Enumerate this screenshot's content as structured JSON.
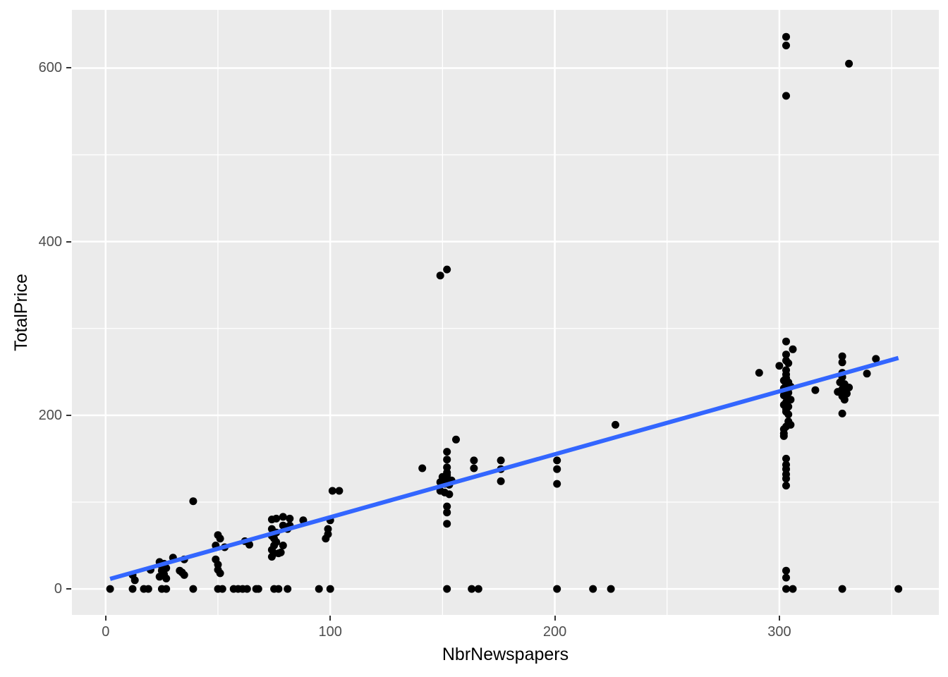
{
  "figure": {
    "background": "#FFFFFF",
    "panel_background": "#EBEBEB",
    "grid_color": "#FFFFFF",
    "point_color": "#000000",
    "trend_color": "#3366FF",
    "tick_label_color": "#4D4D4D",
    "tick_mark_color": "#333333",
    "axis_title_color": "#000000"
  },
  "chart_data": {
    "type": "scatter",
    "title": "",
    "xlabel": "NbrNewspapers",
    "ylabel": "TotalPrice",
    "x_ticks": [
      0,
      100,
      200,
      300
    ],
    "y_ticks": [
      0,
      200,
      400,
      600
    ],
    "x_minor_ticks": [
      50,
      150,
      250,
      350
    ],
    "y_minor_ticks": [
      100,
      300,
      500
    ],
    "xlim": [
      -15,
      371
    ],
    "ylim": [
      -30,
      667
    ],
    "grid": "on",
    "legend": "none",
    "trend": {
      "type": "linear-smooth",
      "x_start": 2,
      "y_start": 11.5,
      "x_end": 353,
      "y_end": 266
    },
    "points": [
      [
        303,
        636
      ],
      [
        303,
        626
      ],
      [
        303,
        568
      ],
      [
        331,
        605
      ],
      [
        152,
        368
      ],
      [
        149,
        361
      ],
      [
        227,
        189
      ],
      [
        291,
        249
      ],
      [
        303,
        285
      ],
      [
        306,
        276
      ],
      [
        303,
        270
      ],
      [
        303,
        263
      ],
      [
        304,
        260
      ],
      [
        300,
        257
      ],
      [
        303,
        252
      ],
      [
        303,
        247
      ],
      [
        303,
        243
      ],
      [
        302,
        240
      ],
      [
        304,
        238
      ],
      [
        303,
        236
      ],
      [
        305,
        233
      ],
      [
        302,
        231
      ],
      [
        303,
        229
      ],
      [
        304,
        226
      ],
      [
        302,
        223
      ],
      [
        303,
        221
      ],
      [
        305,
        218
      ],
      [
        303,
        215
      ],
      [
        302,
        212
      ],
      [
        304,
        210
      ],
      [
        303,
        207
      ],
      [
        303,
        204
      ],
      [
        304,
        201
      ],
      [
        304,
        193
      ],
      [
        305,
        189
      ],
      [
        303,
        187
      ],
      [
        302,
        184
      ],
      [
        302,
        179
      ],
      [
        302,
        176
      ],
      [
        303,
        150
      ],
      [
        303,
        143
      ],
      [
        303,
        138
      ],
      [
        303,
        132
      ],
      [
        303,
        127
      ],
      [
        303,
        119
      ],
      [
        303,
        21
      ],
      [
        303,
        13
      ],
      [
        303,
        0
      ],
      [
        306,
        0
      ],
      [
        316,
        229
      ],
      [
        328,
        268
      ],
      [
        328,
        261
      ],
      [
        328,
        249
      ],
      [
        328,
        244
      ],
      [
        327,
        238
      ],
      [
        329,
        236
      ],
      [
        331,
        232
      ],
      [
        328,
        230
      ],
      [
        326,
        227
      ],
      [
        330,
        225
      ],
      [
        328,
        222
      ],
      [
        329,
        218
      ],
      [
        328,
        202
      ],
      [
        339,
        248
      ],
      [
        343,
        265
      ],
      [
        328,
        0
      ],
      [
        353,
        0
      ],
      [
        201,
        148
      ],
      [
        201,
        138
      ],
      [
        201,
        121
      ],
      [
        201,
        0
      ],
      [
        217,
        0
      ],
      [
        225,
        0
      ],
      [
        176,
        148
      ],
      [
        176,
        138
      ],
      [
        176,
        124
      ],
      [
        164,
        148
      ],
      [
        164,
        139
      ],
      [
        163,
        0
      ],
      [
        166,
        0
      ],
      [
        156,
        172
      ],
      [
        152,
        158
      ],
      [
        152,
        149
      ],
      [
        152,
        140
      ],
      [
        141,
        139
      ],
      [
        152,
        134
      ],
      [
        150,
        129
      ],
      [
        152,
        127
      ],
      [
        154,
        125
      ],
      [
        149,
        123
      ],
      [
        151,
        121
      ],
      [
        153,
        120
      ],
      [
        152,
        131
      ],
      [
        149,
        113
      ],
      [
        153,
        109
      ],
      [
        151,
        111
      ],
      [
        152,
        95
      ],
      [
        152,
        88
      ],
      [
        152,
        75
      ],
      [
        152,
        0
      ],
      [
        101,
        113
      ],
      [
        104,
        113
      ],
      [
        100,
        79
      ],
      [
        99,
        69
      ],
      [
        99,
        63
      ],
      [
        98,
        58
      ],
      [
        95,
        0
      ],
      [
        100,
        0
      ],
      [
        88,
        79
      ],
      [
        74,
        80
      ],
      [
        76,
        81
      ],
      [
        79,
        83
      ],
      [
        82,
        81
      ],
      [
        82,
        73
      ],
      [
        79,
        73
      ],
      [
        74,
        69
      ],
      [
        76,
        65
      ],
      [
        81,
        69
      ],
      [
        74,
        61
      ],
      [
        75,
        58
      ],
      [
        76,
        54
      ],
      [
        75,
        50
      ],
      [
        79,
        50
      ],
      [
        74,
        45
      ],
      [
        75,
        41
      ],
      [
        77,
        41
      ],
      [
        74,
        37
      ],
      [
        78,
        42
      ],
      [
        61,
        0
      ],
      [
        63,
        0
      ],
      [
        67,
        0
      ],
      [
        68,
        0
      ],
      [
        75,
        0
      ],
      [
        77,
        0
      ],
      [
        81,
        0
      ],
      [
        62,
        55
      ],
      [
        64,
        51
      ],
      [
        50,
        62
      ],
      [
        51,
        58
      ],
      [
        49,
        50
      ],
      [
        53,
        48
      ],
      [
        49,
        34
      ],
      [
        50,
        28
      ],
      [
        50,
        22
      ],
      [
        51,
        18
      ],
      [
        50,
        0
      ],
      [
        52,
        0
      ],
      [
        57,
        0
      ],
      [
        59,
        0
      ],
      [
        39,
        101
      ],
      [
        30,
        36
      ],
      [
        35,
        34
      ],
      [
        34,
        19
      ],
      [
        33,
        21
      ],
      [
        35,
        16
      ],
      [
        39,
        0
      ],
      [
        20,
        22
      ],
      [
        24,
        31
      ],
      [
        26,
        29
      ],
      [
        25,
        26
      ],
      [
        27,
        24
      ],
      [
        25,
        21
      ],
      [
        26,
        17
      ],
      [
        24,
        14
      ],
      [
        27,
        12
      ],
      [
        12,
        16
      ],
      [
        13,
        10
      ],
      [
        12,
        0
      ],
      [
        17,
        0
      ],
      [
        19,
        0
      ],
      [
        25,
        0
      ],
      [
        27,
        0
      ],
      [
        2,
        0
      ]
    ]
  }
}
